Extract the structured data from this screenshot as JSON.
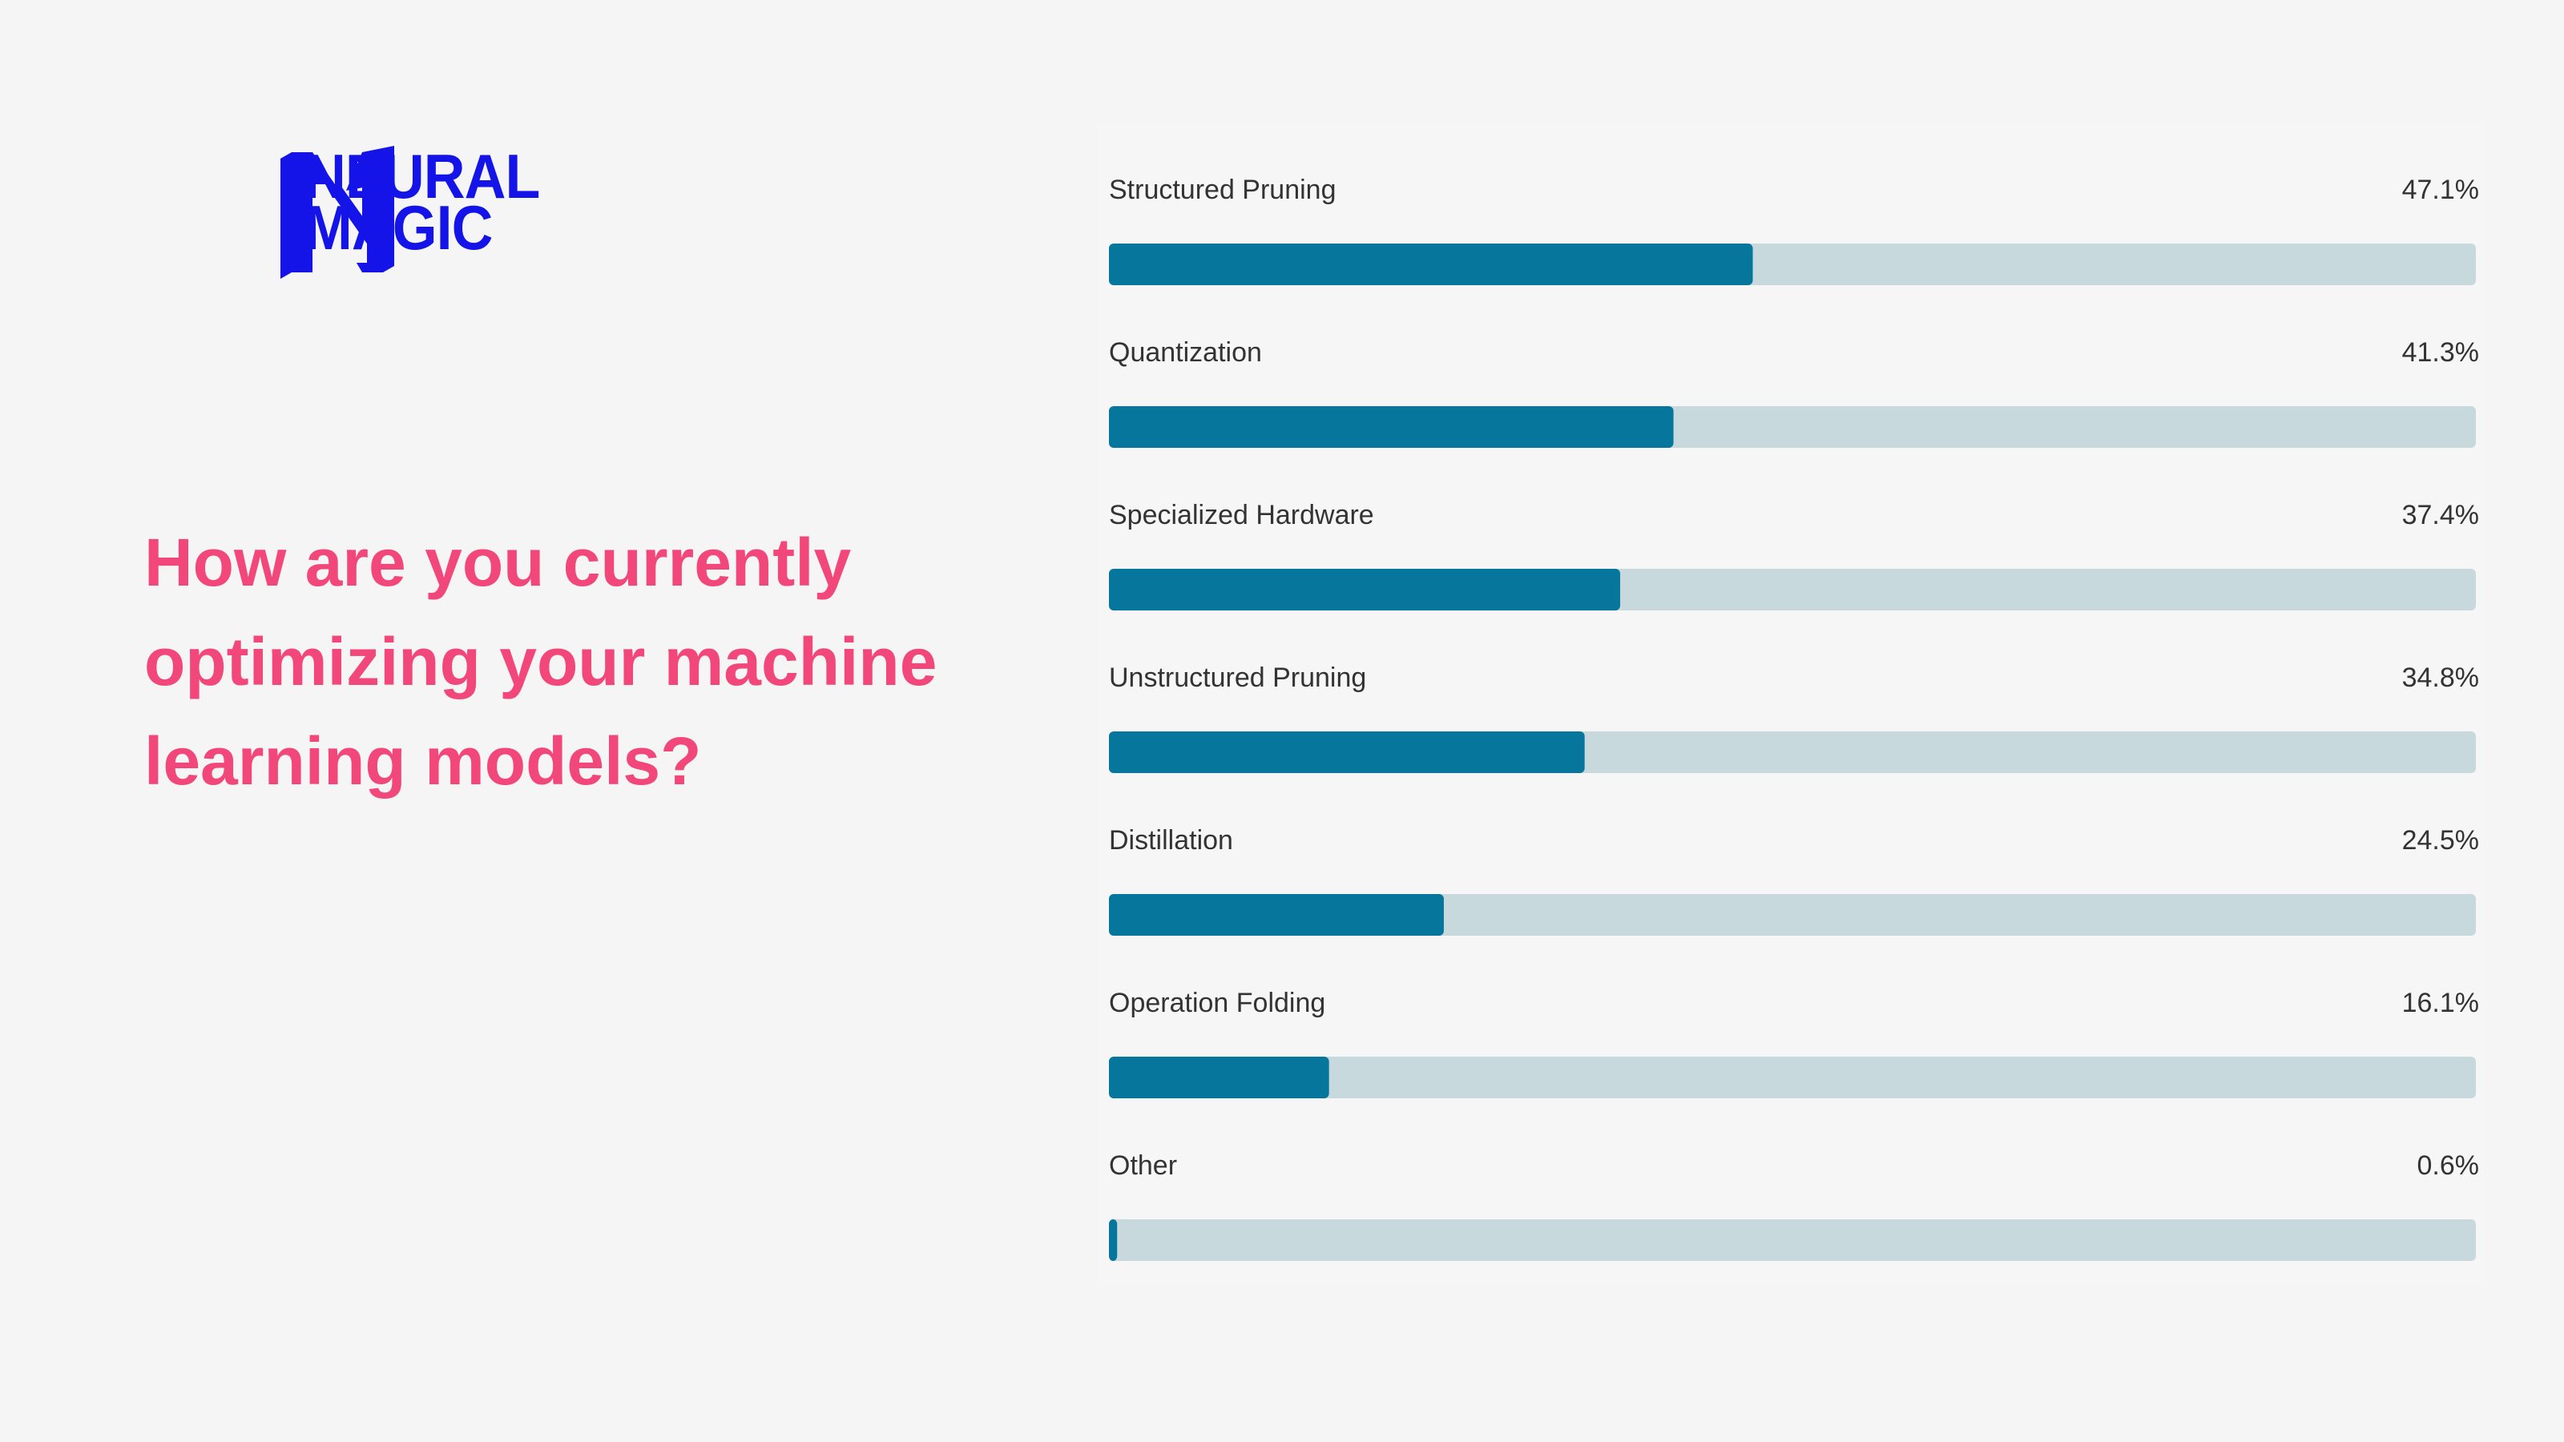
{
  "brand": {
    "line1": "NEURAL",
    "line2": "MAGIC",
    "logo_icon": "neural-magic-logo-icon",
    "color": "#1414e8"
  },
  "question": {
    "text": "How are you currently optimizing your machine learning models?",
    "color": "#f2477a"
  },
  "chart_data": {
    "type": "bar",
    "orientation": "horizontal",
    "title": "",
    "categories": [
      "Structured Pruning",
      "Quantization",
      "Specialized Hardware",
      "Unstructured Pruning",
      "Distillation",
      "Operation Folding",
      "Other"
    ],
    "values": [
      47.1,
      41.3,
      37.4,
      34.8,
      24.5,
      16.1,
      0.6
    ],
    "value_labels": [
      "47.1%",
      "41.3%",
      "37.4%",
      "34.8%",
      "24.5%",
      "16.1%",
      "0.6%"
    ],
    "xlim": [
      0,
      100
    ],
    "unit": "%",
    "bar_color": "#06769c",
    "track_color": "#c7d9dd",
    "grid": false
  }
}
